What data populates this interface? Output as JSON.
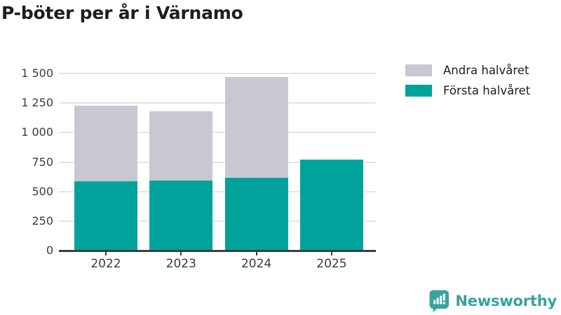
{
  "header": {
    "title": "P-böter per år i Värnamo"
  },
  "chart_data": {
    "type": "bar",
    "stacked": true,
    "title": "P-böter per år i Värnamo",
    "categories": [
      "2022",
      "2023",
      "2024",
      "2025"
    ],
    "series": [
      {
        "name": "Första halvåret",
        "color": "#00a39b",
        "values": [
          585,
          595,
          615,
          770
        ]
      },
      {
        "name": "Andra halvåret",
        "color": "#c9c7d1",
        "values": [
          640,
          585,
          855,
          0
        ]
      }
    ],
    "legend": [
      {
        "label": "Andra halvåret",
        "color": "#c9c7d1"
      },
      {
        "label": "Första halvåret",
        "color": "#00a39b"
      }
    ],
    "xlabel": "",
    "ylabel": "",
    "ylim": [
      0,
      1500
    ],
    "ytick_values": [
      0,
      250,
      500,
      750,
      1000,
      1250,
      1500
    ],
    "ytick_labels": [
      "0",
      "250",
      "500",
      "750",
      "1 000",
      "1 250",
      "1 500"
    ],
    "grid": true,
    "legend_position": "top-right"
  },
  "footer": {
    "brand": "Newsworthy"
  },
  "colors": {
    "axis": "#3d3d3d",
    "grid": "#e5e3e7",
    "title_text": "#1d1d1b",
    "tick_text": "#3c3c3c",
    "brand_teal": "#35a3a0"
  }
}
